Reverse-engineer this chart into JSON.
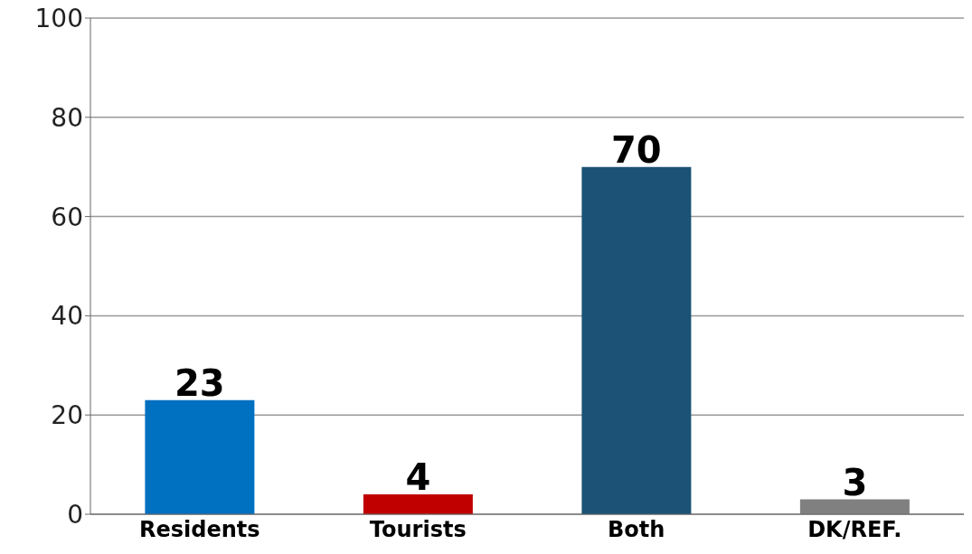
{
  "chart_data": {
    "type": "bar",
    "categories": [
      "Residents",
      "Tourists",
      "Both",
      "DK/REF."
    ],
    "values": [
      23,
      4,
      70,
      3
    ],
    "colors": [
      "#0070c0",
      "#c00000",
      "#1b5276",
      "#808080"
    ],
    "ylim": [
      0,
      100
    ],
    "yticks": [
      0,
      20,
      40,
      60,
      80,
      100
    ],
    "grid": "y",
    "data_labels": true
  }
}
